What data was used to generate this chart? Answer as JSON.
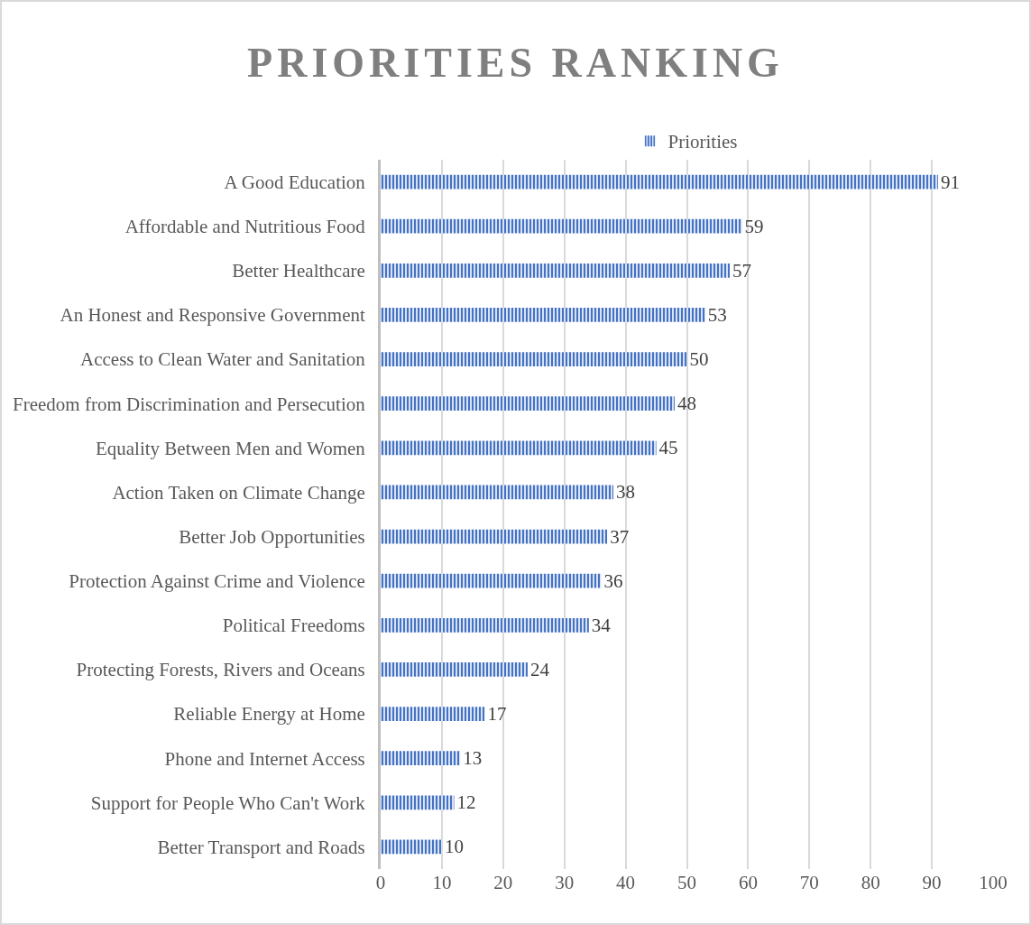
{
  "chart_data": {
    "type": "bar",
    "orientation": "horizontal",
    "title": "PRIORITIES RANKING",
    "categories": [
      "A Good Education",
      "Affordable and Nutritious Food",
      "Better Healthcare",
      "An Honest and Responsive Government",
      "Access to Clean Water and Sanitation",
      "Freedom from Discrimination and Persecution",
      "Equality Between Men and Women",
      "Action Taken on Climate Change",
      "Better Job Opportunities",
      "Protection Against Crime and Violence",
      "Political Freedoms",
      "Protecting Forests, Rivers and Oceans",
      "Reliable Energy at Home",
      "Phone and Internet Access",
      "Support for People Who Can't Work",
      "Better Transport and Roads"
    ],
    "series": [
      {
        "name": "Priorities",
        "color": "#4472c4",
        "values": [
          91,
          59,
          57,
          53,
          50,
          48,
          45,
          38,
          37,
          36,
          34,
          24,
          17,
          13,
          12,
          10
        ]
      }
    ],
    "xlim": [
      0,
      100
    ],
    "xticks": [
      0,
      10,
      20,
      30,
      40,
      50,
      60,
      70,
      80,
      90,
      100
    ],
    "grid": "x",
    "legend": "top",
    "data_labels": true
  }
}
